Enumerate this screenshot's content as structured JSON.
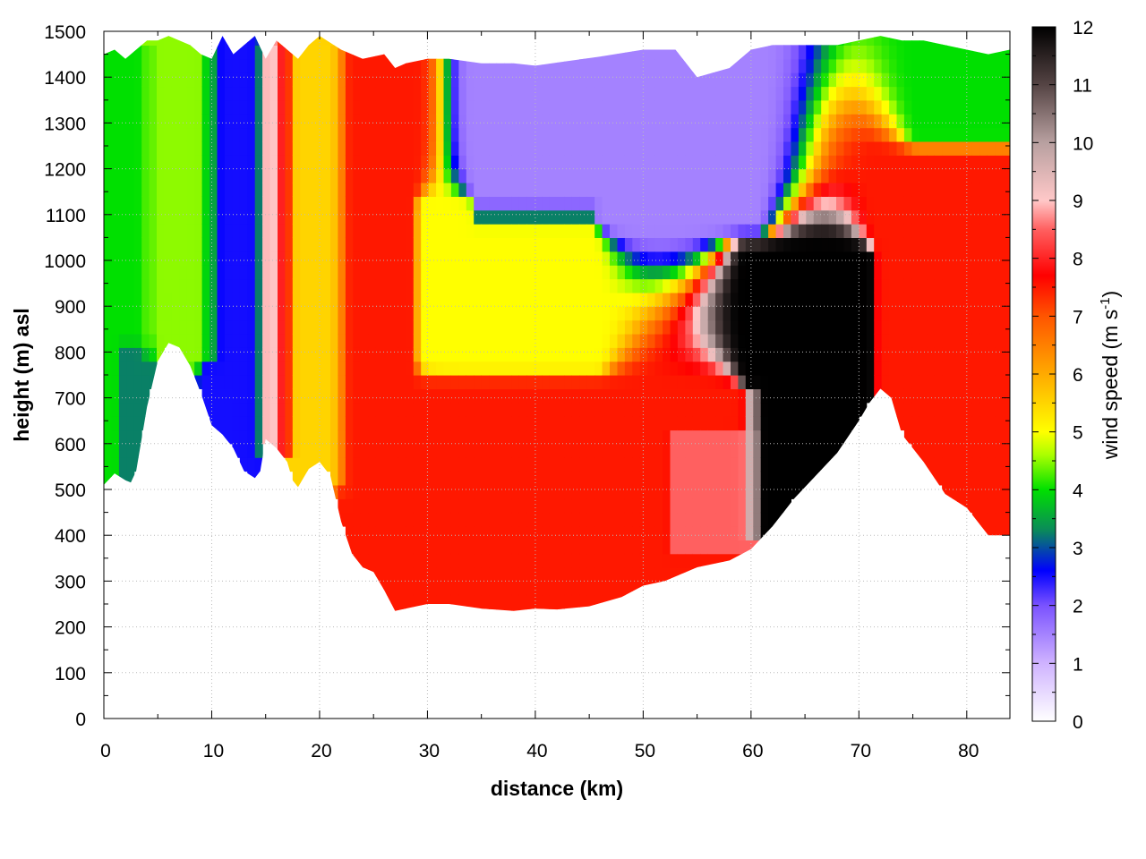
{
  "chart_data": {
    "type": "heatmap",
    "title": "",
    "xlabel": "distance (km)",
    "ylabel": "height (m) asl",
    "xlim": [
      0,
      84
    ],
    "ylim": [
      0,
      1500
    ],
    "x_ticks": [
      "0",
      "10",
      "20",
      "30",
      "40",
      "50",
      "60",
      "70",
      "80"
    ],
    "y_ticks": [
      "0",
      "100",
      "200",
      "300",
      "400",
      "500",
      "600",
      "700",
      "800",
      "900",
      "1000",
      "1100",
      "1200",
      "1300",
      "1400",
      "1500"
    ],
    "grid": true,
    "colorbar": {
      "label_main": "wind speed (m s",
      "label_sup": "-1",
      "label_close": ")",
      "range": [
        0,
        12
      ],
      "ticks": [
        "0",
        "1",
        "2",
        "3",
        "4",
        "5",
        "6",
        "7",
        "8",
        "9",
        "10",
        "11",
        "12"
      ],
      "palette": [
        [
          0,
          "#ffffff"
        ],
        [
          1,
          "#cfb3ff"
        ],
        [
          2,
          "#7a52ff"
        ],
        [
          2.6,
          "#0000ff"
        ],
        [
          3.3,
          "#0a8a5a"
        ],
        [
          4,
          "#00e000"
        ],
        [
          4.6,
          "#aaff00"
        ],
        [
          5,
          "#ffff00"
        ],
        [
          6,
          "#ffaa00"
        ],
        [
          7,
          "#ff5500"
        ],
        [
          7.7,
          "#ff0000"
        ],
        [
          8.5,
          "#ff6060"
        ],
        [
          9,
          "#ffc8c8"
        ],
        [
          10,
          "#b8a0a0"
        ],
        [
          11,
          "#554444"
        ],
        [
          12,
          "#000000"
        ]
      ]
    },
    "terrain_profile": {
      "x": [
        0,
        1,
        2,
        2.5,
        3,
        4,
        5,
        6,
        7,
        8,
        9,
        10,
        11,
        12,
        13,
        14,
        14.5,
        15,
        16,
        17,
        17.5,
        18,
        19,
        20,
        21,
        22,
        23,
        24,
        25,
        26,
        27,
        28,
        30,
        32,
        35,
        38,
        40,
        42,
        45,
        48,
        50,
        52,
        55,
        58,
        60,
        62,
        64,
        66,
        68,
        70,
        71,
        72,
        73,
        74,
        76,
        78,
        80,
        82,
        84
      ],
      "y": [
        510,
        535,
        520,
        515,
        540,
        680,
        780,
        820,
        810,
        770,
        710,
        640,
        620,
        590,
        540,
        525,
        540,
        610,
        590,
        560,
        520,
        505,
        545,
        560,
        530,
        430,
        360,
        330,
        320,
        280,
        235,
        240,
        250,
        250,
        240,
        235,
        240,
        238,
        245,
        265,
        290,
        300,
        330,
        345,
        370,
        420,
        480,
        530,
        580,
        650,
        690,
        720,
        700,
        620,
        560,
        490,
        460,
        400,
        400
      ]
    },
    "top_envelope": {
      "x": [
        0,
        1,
        2,
        3,
        4,
        5,
        6,
        7,
        8,
        9,
        10,
        11,
        12,
        13,
        14,
        15,
        16,
        17,
        18,
        19,
        20,
        22,
        24,
        26,
        27,
        28,
        30,
        32,
        35,
        38,
        40,
        43,
        46,
        50,
        53,
        55,
        58,
        60,
        62,
        64,
        66,
        68,
        70,
        72,
        74,
        76,
        78,
        80,
        82,
        84
      ],
      "y": [
        1450,
        1460,
        1440,
        1460,
        1480,
        1480,
        1490,
        1480,
        1470,
        1450,
        1440,
        1490,
        1450,
        1470,
        1490,
        1440,
        1480,
        1460,
        1440,
        1470,
        1490,
        1460,
        1440,
        1450,
        1420,
        1430,
        1440,
        1440,
        1430,
        1430,
        1425,
        1435,
        1445,
        1460,
        1460,
        1400,
        1420,
        1460,
        1470,
        1470,
        1470,
        1470,
        1480,
        1490,
        1480,
        1480,
        1470,
        1460,
        1450,
        1460
      ]
    },
    "wind_speed_regions": [
      {
        "distance_km": [
          0,
          4
        ],
        "height_m": [
          520,
          1450
        ],
        "speed_ms": 4.0
      },
      {
        "distance_km": [
          2,
          4
        ],
        "height_m": [
          520,
          800
        ],
        "speed_ms": 2.5
      },
      {
        "distance_km": [
          4,
          10
        ],
        "height_m": [
          800,
          1480
        ],
        "speed_ms": 4.5
      },
      {
        "distance_km": [
          10,
          14
        ],
        "height_m": [
          540,
          1480
        ],
        "speed_ms": 2.5
      },
      {
        "distance_km": [
          15,
          17
        ],
        "height_m": [
          600,
          1460
        ],
        "speed_ms": 9.0
      },
      {
        "distance_km": [
          17,
          22
        ],
        "height_m": [
          520,
          1460
        ],
        "speed_ms": 5.5
      },
      {
        "distance_km": [
          22,
          28
        ],
        "height_m": [
          240,
          1440
        ],
        "speed_ms": 7.5
      },
      {
        "distance_km": [
          28,
          60
        ],
        "height_m": [
          240,
          700
        ],
        "speed_ms": 7.5
      },
      {
        "distance_km": [
          30,
          45
        ],
        "height_m": [
          800,
          1100
        ],
        "speed_ms": 5.0
      },
      {
        "distance_km": [
          35,
          60
        ],
        "height_m": [
          1100,
          1430
        ],
        "speed_ms": 1.5
      },
      {
        "distance_km": [
          53,
          60
        ],
        "height_m": [
          380,
          600
        ],
        "speed_ms": 9.5
      },
      {
        "distance_km": [
          60,
          71
        ],
        "height_m": [
          420,
          1000
        ],
        "speed_ms": 12.0
      },
      {
        "distance_km": [
          72,
          84
        ],
        "height_m": [
          400,
          1200
        ],
        "speed_ms": 7.5
      },
      {
        "distance_km": [
          76,
          84
        ],
        "height_m": [
          1300,
          1460
        ],
        "speed_ms": 4.0
      }
    ]
  }
}
